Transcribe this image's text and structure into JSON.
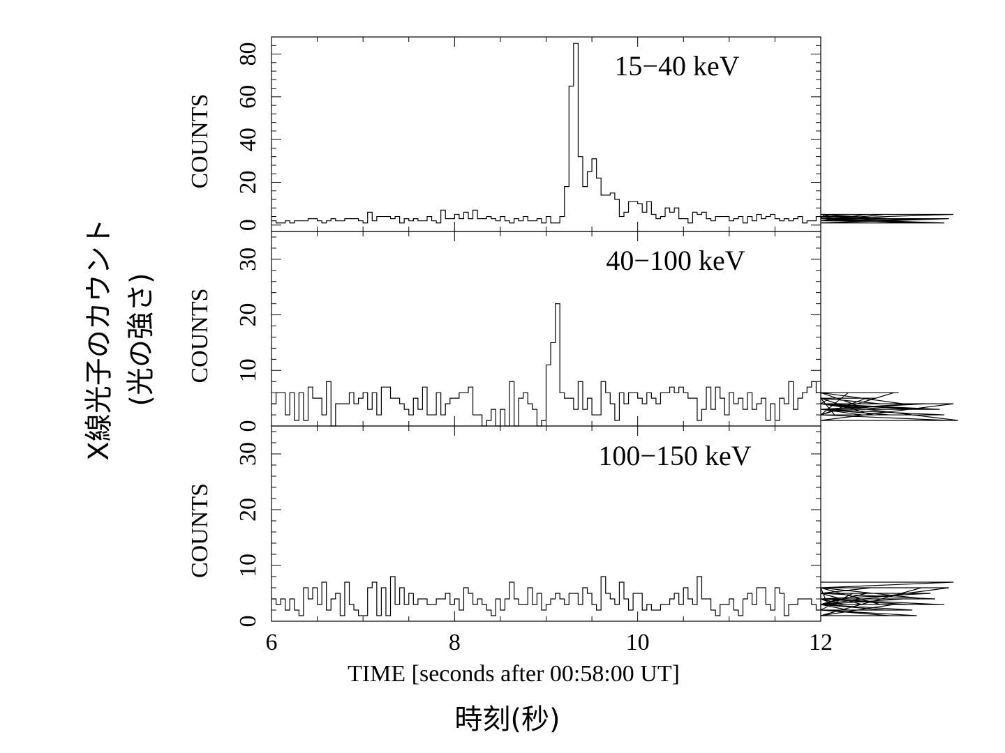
{
  "figure": {
    "left_axis_label_line1": "X線光子のカウント",
    "left_axis_label_line2": "(光の強さ)",
    "bottom_axis_label_jp": "時刻(秒)"
  },
  "chart_data": [
    {
      "type": "line",
      "style": "step",
      "panel_label": "15−40 keV",
      "ylabel": "COUNTS",
      "xlabel": "TIME [seconds after 00:58:00 UT]",
      "xlim": [
        6,
        12
      ],
      "ylim": [
        -3,
        88
      ],
      "xticks": [
        6,
        8,
        10,
        12
      ],
      "yticks": [
        0,
        20,
        40,
        60,
        80
      ],
      "bin_width": 0.05,
      "x_start": 6.0,
      "values": [
        2,
        1,
        1,
        2,
        1,
        2,
        2,
        2,
        3,
        3,
        2,
        1,
        2,
        3,
        2,
        2,
        3,
        3,
        3,
        2,
        1,
        6,
        2,
        4,
        4,
        4,
        3,
        4,
        1,
        3,
        2,
        3,
        2,
        2,
        4,
        2,
        1,
        7,
        3,
        3,
        5,
        3,
        6,
        3,
        7,
        3,
        3,
        4,
        3,
        2,
        4,
        2,
        1,
        3,
        2,
        4,
        2,
        2,
        3,
        1,
        4,
        1,
        1,
        4,
        18,
        65,
        85,
        32,
        18,
        25,
        31,
        22,
        14,
        14,
        15,
        12,
        4,
        6,
        11,
        11,
        10,
        6,
        11,
        5,
        3,
        4,
        8,
        6,
        8,
        3,
        3,
        1,
        6,
        5,
        6,
        3,
        2,
        4,
        4,
        4,
        2,
        3,
        4,
        1,
        4,
        2,
        5,
        3,
        4,
        5,
        3,
        2,
        3,
        2,
        3,
        4,
        1,
        2,
        2,
        4,
        3,
        5,
        4,
        4,
        3,
        3,
        3,
        4,
        4,
        2,
        5,
        3,
        2,
        2,
        5,
        3,
        2,
        3,
        3,
        1,
        1,
        3,
        3,
        1,
        1,
        3,
        3,
        1,
        3,
        5
      ],
      "title": ""
    },
    {
      "type": "line",
      "style": "step",
      "panel_label": "40−100 keV",
      "ylabel": "COUNTS",
      "xlabel": "TIME [seconds after 00:58:00 UT]",
      "xlim": [
        6,
        12
      ],
      "ylim": [
        0,
        35
      ],
      "xticks": [
        6,
        8,
        10,
        12
      ],
      "yticks": [
        0,
        10,
        20,
        30
      ],
      "bin_width": 0.05,
      "x_start": 6.0,
      "values": [
        4,
        6,
        6,
        2,
        6,
        1,
        6,
        1,
        7,
        5,
        5,
        2,
        8,
        0,
        4,
        4,
        4,
        6,
        4,
        5,
        6,
        3,
        6,
        2,
        7,
        7,
        5,
        5,
        4,
        3,
        2,
        5,
        3,
        7,
        2,
        2,
        6,
        2,
        4,
        5,
        5,
        6,
        6,
        7,
        2,
        2,
        0,
        1,
        3,
        0,
        3,
        0,
        8,
        0,
        5,
        6,
        4,
        3,
        0,
        1,
        11,
        15,
        22,
        6,
        5,
        5,
        3,
        8,
        3,
        5,
        2,
        2,
        8,
        6,
        4,
        1,
        6,
        4,
        6,
        6,
        5,
        4,
        6,
        5,
        4,
        6,
        6,
        7,
        6,
        7,
        6,
        5,
        5,
        1,
        3,
        7,
        3,
        7,
        5,
        2,
        6,
        4,
        5,
        3,
        6,
        3,
        4,
        5,
        1,
        4,
        1,
        5,
        4,
        8,
        3,
        5,
        6,
        7,
        8,
        6,
        5,
        4,
        5,
        2,
        2,
        2,
        6,
        4,
        3,
        2,
        5,
        2,
        5,
        4,
        3,
        2,
        6,
        6,
        4,
        4,
        3,
        4,
        3,
        4,
        4,
        4,
        3,
        2,
        1,
        4,
        1
      ],
      "title": ""
    },
    {
      "type": "line",
      "style": "step",
      "panel_label": "100−150 keV",
      "ylabel": "COUNTS",
      "xlabel": "TIME [seconds after 00:58:00 UT]",
      "xlim": [
        6,
        12
      ],
      "ylim": [
        0,
        35
      ],
      "xticks": [
        6,
        8,
        10,
        12
      ],
      "yticks": [
        0,
        10,
        20,
        30
      ],
      "bin_width": 0.05,
      "x_start": 6.0,
      "values": [
        4,
        3,
        4,
        2,
        4,
        2,
        1,
        6,
        4,
        6,
        3,
        7,
        2,
        4,
        5,
        1,
        7,
        3,
        2,
        1,
        1,
        6,
        7,
        1,
        6,
        1,
        8,
        3,
        6,
        3,
        5,
        3,
        4,
        4,
        3,
        3,
        4,
        4,
        5,
        3,
        4,
        2,
        6,
        5,
        3,
        4,
        3,
        2,
        1,
        4,
        2,
        4,
        7,
        4,
        3,
        3,
        6,
        3,
        5,
        2,
        3,
        4,
        5,
        4,
        3,
        5,
        5,
        3,
        6,
        5,
        3,
        2,
        8,
        5,
        4,
        3,
        7,
        4,
        2,
        5,
        5,
        2,
        3,
        2,
        2,
        3,
        3,
        4,
        5,
        3,
        6,
        4,
        3,
        8,
        4,
        4,
        2,
        1,
        3,
        3,
        4,
        2,
        1,
        4,
        5,
        3,
        6,
        6,
        3,
        2,
        6,
        5,
        1,
        3,
        3,
        4,
        4,
        4,
        3,
        2,
        6,
        4,
        4,
        3,
        4,
        3,
        2,
        5,
        5,
        3,
        5,
        6,
        6,
        3,
        2,
        1,
        3,
        3,
        4,
        3,
        2,
        1,
        6,
        4,
        5,
        4,
        3,
        3,
        6,
        7
      ],
      "title": ""
    }
  ]
}
